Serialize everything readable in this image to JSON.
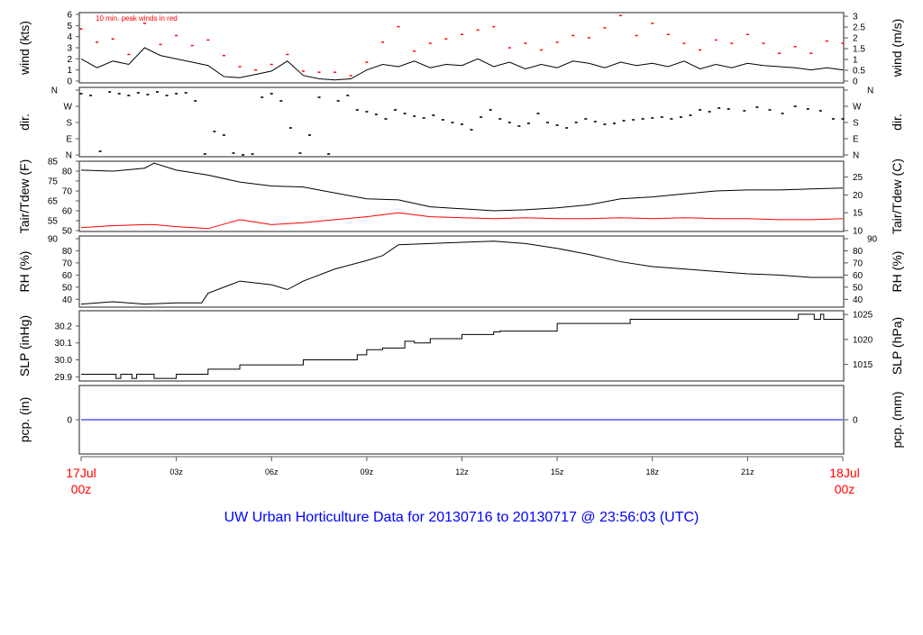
{
  "chart_data": [
    {
      "type": "line",
      "id": "wind",
      "ylabel": "wind (kts)",
      "ylabel_right": "wind (m/s)",
      "ylim": [
        0,
        6
      ],
      "yticks": [
        0,
        1,
        2,
        3,
        4,
        5,
        6
      ],
      "yticks_right": [
        "0",
        "0.5",
        "1",
        "1.5",
        "2",
        "2.5",
        "3"
      ],
      "annotation": "10 min. peak winds in red",
      "colors": {
        "series": "#000000",
        "peak": "#ff0000"
      },
      "x_hours": [
        0,
        0.5,
        1,
        1.5,
        2,
        2.5,
        3,
        3.5,
        4,
        4.5,
        5,
        5.5,
        6,
        6.5,
        7,
        7.5,
        8,
        8.5,
        9,
        9.5,
        10,
        10.5,
        11,
        11.5,
        12,
        12.5,
        13,
        13.5,
        14,
        14.5,
        15,
        15.5,
        16,
        16.5,
        17,
        17.5,
        18,
        18.5,
        19,
        19.5,
        20,
        20.5,
        21,
        21.5,
        22,
        22.5,
        23,
        23.5,
        24
      ],
      "values": [
        2,
        1.2,
        1.8,
        1.5,
        3,
        2.3,
        2,
        1.7,
        1.4,
        0.4,
        0.3,
        0.6,
        0.9,
        1.8,
        0.5,
        0.2,
        0.1,
        0.2,
        1.0,
        1.5,
        1.3,
        1.8,
        1.2,
        1.5,
        1.4,
        2,
        1.3,
        1.7,
        1.1,
        1.5,
        1.2,
        1.8,
        1.6,
        1.2,
        1.7,
        1.4,
        1.6,
        1.3,
        1.8,
        1.1,
        1.5,
        1.2,
        1.6,
        1.4,
        1.3,
        1.2,
        1.0,
        1.2,
        1.0
      ],
      "peaks": [
        4.7,
        3.5,
        3.8,
        2.4,
        5.2,
        3.3,
        4.1,
        3.2,
        3.7,
        2.3,
        1.3,
        1,
        1.5,
        2.4,
        0.9,
        0.8,
        0.8,
        0.5,
        1.7,
        3.5,
        4.9,
        2.7,
        3.4,
        3.8,
        4.2,
        4.6,
        4.9,
        3,
        3.4,
        2.8,
        3.5,
        4.1,
        3.9,
        4.8,
        5.9,
        4.1,
        5.2,
        4.2,
        3.4,
        2.8,
        3.7,
        3.4,
        4.2,
        3.4,
        2.5,
        3.1,
        2.5,
        3.6,
        3.4
      ]
    },
    {
      "type": "scatter",
      "id": "dir",
      "ylabel": "dir.",
      "ylim": [
        0,
        360
      ],
      "yticks": [
        "N",
        "E",
        "S",
        "W",
        "N"
      ],
      "ytick_values": [
        0,
        90,
        180,
        270,
        360
      ],
      "x_hours": [
        0,
        0.3,
        0.6,
        0.9,
        1.2,
        1.5,
        1.8,
        2.1,
        2.4,
        2.7,
        3,
        3.3,
        3.6,
        3.9,
        4.2,
        4.5,
        4.8,
        5.1,
        5.4,
        5.7,
        6,
        6.3,
        6.6,
        6.9,
        7.2,
        7.5,
        7.8,
        8.1,
        8.4,
        8.7,
        9,
        9.3,
        9.6,
        9.9,
        10.2,
        10.5,
        10.8,
        11.1,
        11.4,
        11.7,
        12,
        12.3,
        12.6,
        12.9,
        13.2,
        13.5,
        13.8,
        14.1,
        14.4,
        14.7,
        15,
        15.3,
        15.6,
        15.9,
        16.2,
        16.5,
        16.8,
        17.1,
        17.4,
        17.7,
        18,
        18.3,
        18.6,
        18.9,
        19.2,
        19.5,
        19.8,
        20.1,
        20.4,
        20.9,
        21.3,
        21.7,
        22.1,
        22.5,
        22.9,
        23.3,
        23.7,
        24
      ],
      "values": [
        340,
        330,
        20,
        350,
        340,
        330,
        345,
        335,
        350,
        330,
        340,
        345,
        300,
        5,
        130,
        110,
        10,
        0,
        5,
        320,
        340,
        300,
        150,
        10,
        110,
        320,
        5,
        300,
        330,
        250,
        240,
        225,
        200,
        250,
        230,
        215,
        205,
        220,
        195,
        180,
        170,
        140,
        210,
        250,
        200,
        180,
        160,
        175,
        230,
        180,
        165,
        150,
        180,
        200,
        185,
        170,
        175,
        190,
        195,
        200,
        205,
        210,
        200,
        210,
        220,
        250,
        240,
        260,
        255,
        245,
        265,
        250,
        230,
        270,
        255,
        245,
        200,
        200
      ]
    },
    {
      "type": "line",
      "id": "temp",
      "ylabel": "Tair/Tdew (F)",
      "ylabel_right": "Tair/Tdew (C)",
      "ylim": [
        50,
        85
      ],
      "yticks": [
        50,
        55,
        60,
        65,
        70,
        75,
        80,
        85
      ],
      "yticks_right": [
        "10",
        "15",
        "20",
        "25"
      ],
      "colors": {
        "tair": "#000000",
        "tdew": "#ff0000"
      },
      "x_hours": [
        0,
        1,
        2,
        2.3,
        3,
        4,
        5,
        6,
        7,
        8,
        9,
        10,
        11,
        12,
        13,
        14,
        15,
        16,
        17,
        18,
        19,
        20,
        21,
        22,
        23,
        24
      ],
      "tair": [
        80.5,
        80,
        81.5,
        84,
        80.5,
        78,
        74.5,
        72.5,
        72,
        69,
        66,
        65.5,
        62,
        61,
        60,
        60.5,
        61.5,
        63,
        66,
        67,
        68.5,
        70,
        70.5,
        70.5,
        71,
        71.5
      ],
      "tdew": [
        51.5,
        52.5,
        53,
        53,
        52,
        51,
        55.5,
        53,
        54,
        55.5,
        57,
        59,
        57,
        56.5,
        56,
        56.5,
        56,
        56,
        56.5,
        56,
        56.5,
        56,
        56,
        55.5,
        55.5,
        56
      ]
    },
    {
      "type": "line",
      "id": "rh",
      "ylabel": "RH (%)",
      "ylabel_right": "RH (%)",
      "ylim": [
        35,
        90
      ],
      "yticks": [
        40,
        50,
        60,
        70,
        80,
        90
      ],
      "yticks_right": [
        "40",
        "50",
        "60",
        "70",
        "80",
        "90"
      ],
      "x_hours": [
        0,
        1,
        2,
        3,
        3.8,
        4,
        5,
        6,
        6.5,
        7,
        8,
        9,
        9.5,
        10,
        11,
        12,
        13,
        14,
        15,
        16,
        17,
        18,
        19,
        20,
        21,
        22,
        23,
        24
      ],
      "values": [
        36,
        38,
        36,
        37,
        37,
        45,
        55,
        52,
        48,
        55,
        65,
        72,
        76,
        85,
        86,
        87,
        88,
        86,
        82,
        77,
        71,
        67,
        65,
        63,
        61,
        60,
        58,
        58
      ]
    },
    {
      "type": "line",
      "id": "slp",
      "step": true,
      "ylabel": "SLP (inHg)",
      "ylabel_right": "SLP (hPa)",
      "ylim": [
        29.875,
        30.285
      ],
      "yticks": [
        "29.9",
        "30.0",
        "30.1",
        "30.2"
      ],
      "ytick_values": [
        29.9,
        30.0,
        30.1,
        30.2
      ],
      "yticks_right": [
        "1015",
        "1020",
        "1025"
      ],
      "x_hours": [
        0,
        1.1,
        1.25,
        1.6,
        1.75,
        2.3,
        3,
        4,
        5,
        7,
        8.7,
        9,
        9.5,
        10.2,
        10.5,
        11,
        12,
        13,
        13.2,
        15,
        17.3,
        22.6,
        23.1,
        23.3,
        23.4,
        24
      ],
      "values": [
        29.915,
        29.89,
        29.915,
        29.89,
        29.915,
        29.89,
        29.915,
        29.945,
        29.97,
        30.0,
        30.03,
        30.06,
        30.07,
        30.11,
        30.1,
        30.125,
        30.15,
        30.165,
        30.17,
        30.215,
        30.24,
        30.27,
        30.24,
        30.27,
        30.24,
        30.24
      ]
    },
    {
      "type": "line",
      "id": "pcp",
      "ylabel": "pcp. (in)",
      "ylabel_right": "pcp. (mm)",
      "yticks": [
        "0"
      ],
      "yticks_right": [
        "0"
      ],
      "ylim": [
        -1,
        1
      ],
      "x_hours": [
        0,
        24
      ],
      "values": [
        0,
        0
      ],
      "colors": {
        "series": "#0000ff"
      }
    }
  ],
  "xaxis": {
    "ticks": [
      "03z",
      "06z",
      "09z",
      "12z",
      "15z",
      "18z",
      "21z"
    ],
    "tick_hours": [
      3,
      6,
      9,
      12,
      15,
      18,
      21
    ],
    "start_label": [
      "17Jul",
      "00z"
    ],
    "end_label": [
      "18Jul",
      "00z"
    ],
    "color_endpoints": "#ff0000"
  },
  "title": "UW Urban Horticulture Data for 20130716  to  20130717 @ 23:56:03  (UTC)"
}
